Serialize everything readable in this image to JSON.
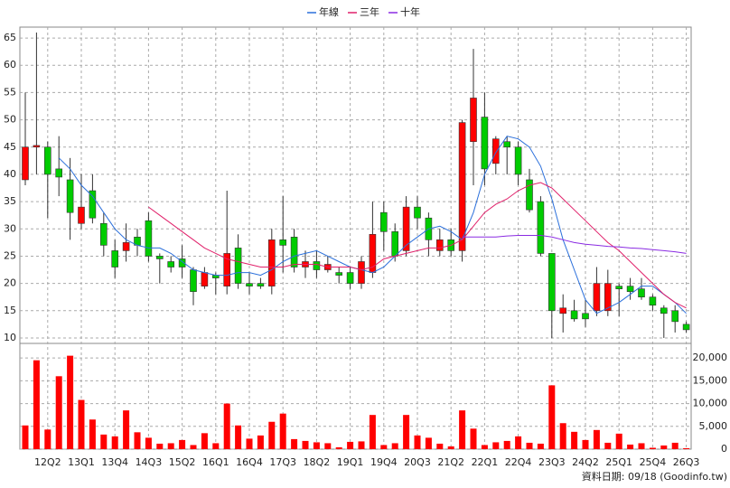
{
  "chart_data": {
    "type": "candlestick",
    "categories": [
      null,
      null,
      "12Q2",
      null,
      null,
      "13Q1",
      null,
      null,
      "13Q4",
      null,
      null,
      "14Q3",
      null,
      null,
      "15Q2",
      null,
      null,
      "16Q1",
      null,
      null,
      "16Q4",
      null,
      null,
      "17Q3",
      null,
      null,
      "18Q2",
      null,
      null,
      "19Q1",
      null,
      null,
      "19Q4",
      null,
      null,
      "20Q3",
      null,
      null,
      "21Q2",
      null,
      null,
      "22Q1",
      null,
      null,
      "22Q4",
      null,
      null,
      "23Q3",
      null,
      null,
      "24Q2",
      null,
      null,
      "25Q1",
      null,
      null,
      "25Q4",
      null,
      null,
      "26Q3"
    ],
    "open": [
      39,
      45,
      45,
      41,
      39,
      31,
      37,
      31,
      26,
      26,
      28.5,
      31.5,
      25,
      24,
      24.5,
      22.5,
      19.5,
      21.5,
      19.5,
      26.5,
      20,
      20,
      19.5,
      28,
      28.5,
      23,
      24,
      22.5,
      22,
      22,
      20,
      22,
      33,
      29.5,
      26,
      34,
      32,
      26,
      28,
      26,
      46,
      50.5,
      42,
      46,
      45,
      39,
      35,
      25.5,
      14.5,
      15,
      14.5,
      15,
      15,
      19.5,
      19.5,
      19,
      17.5,
      15.5,
      15,
      12.5
    ],
    "high": [
      55,
      66,
      46,
      47,
      43,
      40,
      40,
      33,
      28,
      31,
      30,
      33,
      25.5,
      25,
      27,
      23,
      23,
      22,
      37,
      29,
      22,
      21,
      30,
      36,
      30,
      26,
      26,
      25,
      23,
      23,
      25,
      35,
      35,
      31,
      36,
      36,
      33,
      30,
      30,
      50,
      63,
      55,
      47,
      47,
      46,
      41,
      36,
      25.5,
      18,
      17,
      17,
      23,
      22.5,
      20,
      21,
      21,
      18,
      16,
      16,
      13
    ],
    "low": [
      38,
      40,
      32,
      36,
      28,
      30,
      31,
      25,
      21,
      24,
      25,
      24,
      20,
      22,
      21,
      16,
      19,
      18,
      18,
      19,
      18,
      19,
      18,
      22,
      22,
      21,
      21,
      22,
      20,
      19,
      19,
      21,
      26,
      24,
      25,
      30,
      25,
      25,
      25,
      24,
      38,
      38,
      40,
      40,
      38,
      33,
      25,
      10,
      11,
      13,
      12,
      14,
      14,
      14,
      17,
      17,
      15,
      10,
      11,
      11
    ],
    "close": [
      45,
      45.3,
      40,
      39.5,
      33,
      34,
      32,
      27,
      23,
      27.5,
      27,
      25,
      24.5,
      23,
      23,
      18.5,
      22,
      21,
      25.5,
      20,
      19.5,
      19.5,
      28,
      27,
      23,
      24,
      22.5,
      23.5,
      21.5,
      20,
      24,
      29,
      29.5,
      25,
      34,
      32,
      28,
      28,
      26,
      49.5,
      54,
      41,
      46.5,
      45,
      40,
      33.5,
      25.5,
      15,
      15.5,
      13.5,
      13.5,
      20,
      20,
      19,
      18.5,
      17.5,
      16,
      14.5,
      13,
      11.5
    ],
    "up_color": "#ff0000",
    "down_color": "#00cc00",
    "volume": [
      5200,
      19500,
      4300,
      16000,
      20500,
      10800,
      6500,
      3200,
      2800,
      8500,
      3700,
      2500,
      1200,
      1300,
      2000,
      900,
      3500,
      1300,
      10000,
      5200,
      2300,
      3000,
      6000,
      7800,
      2200,
      1800,
      1500,
      1300,
      400,
      1600,
      1700,
      7500,
      900,
      1300,
      7500,
      3000,
      2500,
      1200,
      600,
      8500,
      4500,
      900,
      1500,
      1800,
      2800,
      1400,
      1200,
      14000,
      5700,
      3800,
      2000,
      4200,
      1400,
      3400,
      1000,
      1300,
      300,
      800,
      1400,
      200
    ],
    "volume_color": "#ff0000",
    "series": [
      {
        "name": "年線",
        "color": "#2a6fdb",
        "values": [
          null,
          null,
          null,
          43,
          41,
          38,
          36,
          33,
          30,
          28,
          27,
          26.5,
          26.5,
          25.5,
          24,
          22.5,
          22,
          21.5,
          21.5,
          22,
          22,
          21.5,
          22.5,
          24,
          25,
          25.5,
          26,
          25,
          24,
          23,
          22.5,
          22,
          23,
          25,
          27,
          28.5,
          30,
          30.5,
          29.5,
          28,
          33,
          40,
          44,
          47,
          46.5,
          45,
          41.5,
          35.5,
          28,
          22.5,
          17,
          14.5,
          15.5,
          16.5,
          18,
          19.5,
          19.5,
          18,
          16.5,
          14.5
        ]
      },
      {
        "name": "三年",
        "color": "#e0206a",
        "values": [
          null,
          null,
          null,
          null,
          null,
          null,
          null,
          null,
          null,
          null,
          null,
          34,
          32.5,
          31,
          29.5,
          28,
          26.5,
          25.5,
          24.5,
          24,
          23.5,
          23,
          23,
          23,
          23.5,
          23.5,
          23.5,
          23,
          23,
          23,
          22.5,
          23,
          24.5,
          25,
          25.5,
          26,
          26.5,
          26.5,
          27,
          28,
          30.5,
          33,
          34.5,
          35.5,
          37,
          38,
          38.5,
          37.5,
          35.5,
          33.5,
          31.5,
          29.5,
          27.5,
          26,
          24,
          22,
          20,
          18,
          16.5,
          15.5
        ]
      },
      {
        "name": "十年",
        "color": "#8a2be2",
        "values": [
          null,
          null,
          null,
          null,
          null,
          null,
          null,
          null,
          null,
          null,
          null,
          null,
          null,
          null,
          null,
          null,
          null,
          null,
          null,
          null,
          null,
          null,
          null,
          null,
          null,
          null,
          null,
          null,
          null,
          null,
          null,
          null,
          null,
          null,
          null,
          null,
          null,
          null,
          null,
          28.5,
          28.5,
          28.5,
          28.5,
          28.7,
          28.8,
          28.8,
          28.8,
          28.5,
          28,
          27.5,
          27.2,
          27,
          26.8,
          26.7,
          26.5,
          26.4,
          26.2,
          26,
          25.8,
          25.5
        ]
      }
    ],
    "ylim": [
      9,
      67
    ],
    "yticks": [
      10,
      15,
      20,
      25,
      30,
      35,
      40,
      45,
      50,
      55,
      60,
      65
    ],
    "y2lim": [
      0,
      23200
    ],
    "y2ticks": [
      0,
      {
        "value": 5000,
        "label": "5,000"
      },
      {
        "value": 10000,
        "label": "10,000"
      },
      {
        "value": 15000,
        "label": "15,000"
      },
      {
        "value": 20000,
        "label": "20,000"
      }
    ],
    "grid": true,
    "footnote": "資料日期: 09/18 (Goodinfo.tw)"
  }
}
